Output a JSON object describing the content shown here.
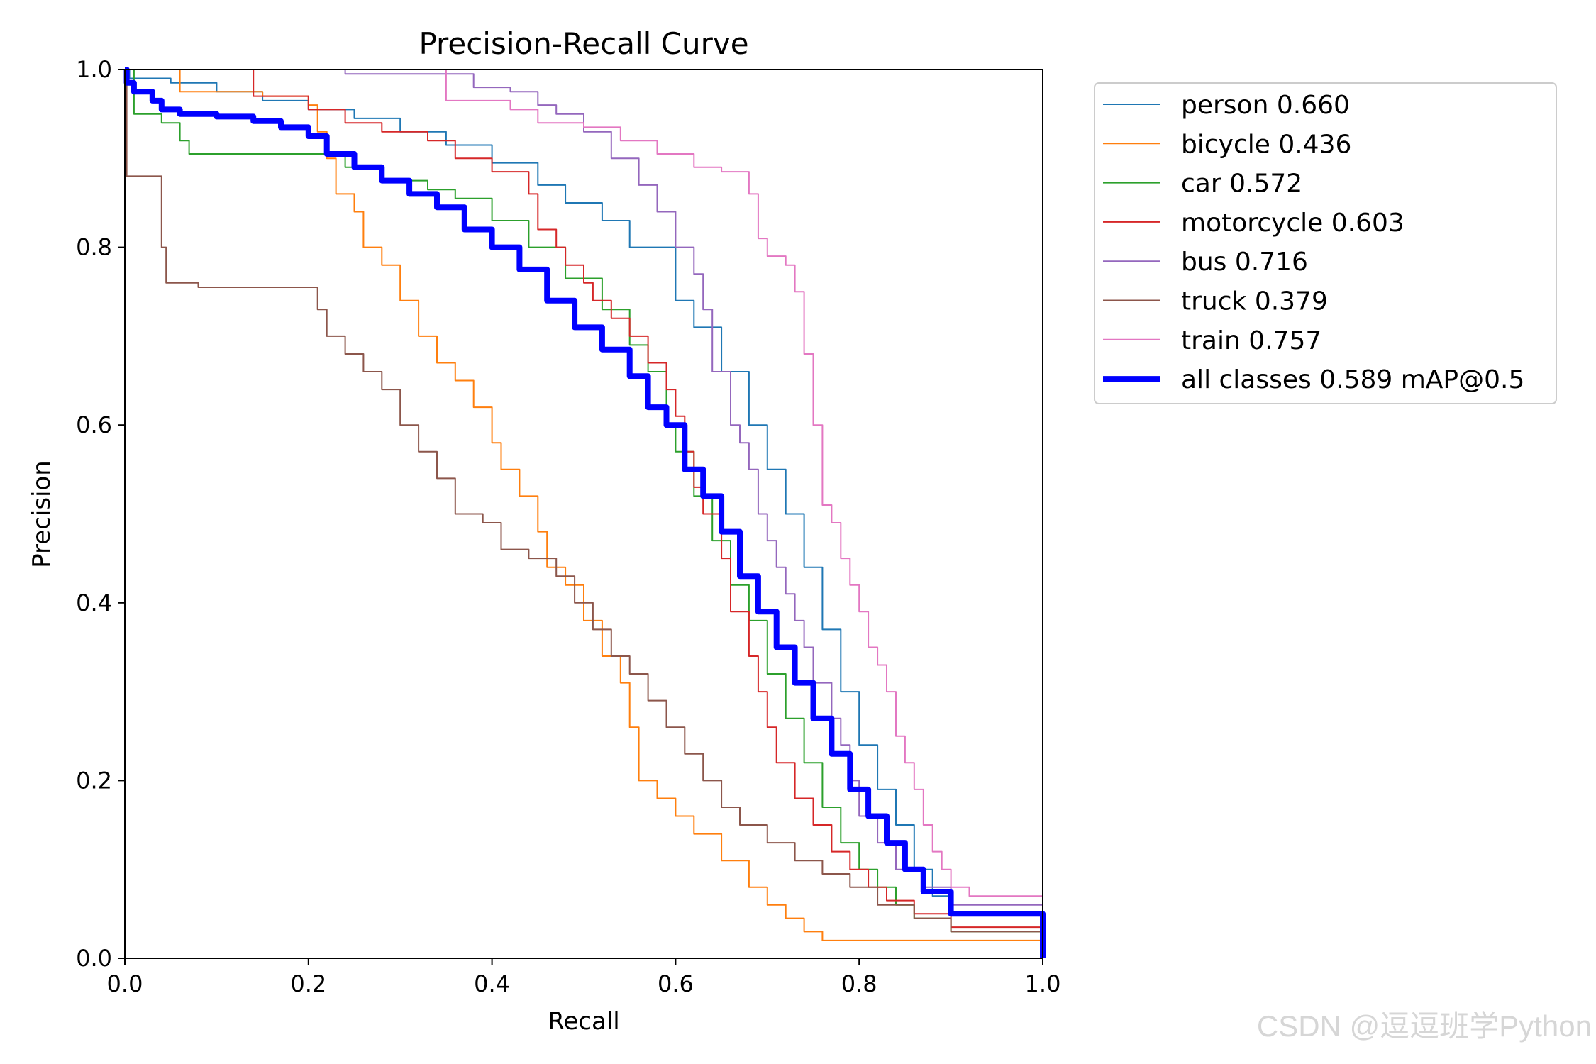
{
  "chart_data": {
    "type": "line",
    "title": "Precision-Recall Curve",
    "xlabel": "Recall",
    "ylabel": "Precision",
    "xlim": [
      0,
      1
    ],
    "ylim": [
      0,
      1
    ],
    "xticks": [
      "0.0",
      "0.2",
      "0.4",
      "0.6",
      "0.8",
      "1.0"
    ],
    "yticks": [
      "0.0",
      "0.2",
      "0.4",
      "0.6",
      "0.8",
      "1.0"
    ],
    "legend_position": "outside-top-right",
    "series": [
      {
        "name": "person",
        "label": "person 0.660",
        "color": "#1f77b4",
        "bold": false,
        "points": [
          [
            0,
            1.0
          ],
          [
            0.005,
            0.99
          ],
          [
            0.05,
            0.985
          ],
          [
            0.1,
            0.975
          ],
          [
            0.15,
            0.965
          ],
          [
            0.2,
            0.955
          ],
          [
            0.25,
            0.945
          ],
          [
            0.3,
            0.93
          ],
          [
            0.35,
            0.915
          ],
          [
            0.4,
            0.895
          ],
          [
            0.45,
            0.87
          ],
          [
            0.48,
            0.85
          ],
          [
            0.52,
            0.83
          ],
          [
            0.55,
            0.8
          ],
          [
            0.6,
            0.74
          ],
          [
            0.62,
            0.71
          ],
          [
            0.65,
            0.66
          ],
          [
            0.68,
            0.6
          ],
          [
            0.7,
            0.55
          ],
          [
            0.72,
            0.5
          ],
          [
            0.74,
            0.44
          ],
          [
            0.76,
            0.37
          ],
          [
            0.78,
            0.3
          ],
          [
            0.8,
            0.24
          ],
          [
            0.82,
            0.19
          ],
          [
            0.84,
            0.15
          ],
          [
            0.86,
            0.1
          ],
          [
            0.88,
            0.07
          ],
          [
            0.9,
            0.05
          ],
          [
            1.0,
            0.0
          ]
        ]
      },
      {
        "name": "bicycle",
        "label": "bicycle 0.436",
        "color": "#ff7f0e",
        "bold": false,
        "points": [
          [
            0,
            1.0
          ],
          [
            0.05,
            1.0
          ],
          [
            0.06,
            0.975
          ],
          [
            0.1,
            0.975
          ],
          [
            0.15,
            0.97
          ],
          [
            0.2,
            0.96
          ],
          [
            0.21,
            0.93
          ],
          [
            0.22,
            0.9
          ],
          [
            0.23,
            0.86
          ],
          [
            0.25,
            0.84
          ],
          [
            0.26,
            0.8
          ],
          [
            0.28,
            0.78
          ],
          [
            0.3,
            0.74
          ],
          [
            0.32,
            0.7
          ],
          [
            0.34,
            0.67
          ],
          [
            0.36,
            0.65
          ],
          [
            0.38,
            0.62
          ],
          [
            0.4,
            0.58
          ],
          [
            0.41,
            0.55
          ],
          [
            0.43,
            0.52
          ],
          [
            0.45,
            0.48
          ],
          [
            0.46,
            0.44
          ],
          [
            0.48,
            0.42
          ],
          [
            0.5,
            0.38
          ],
          [
            0.52,
            0.34
          ],
          [
            0.54,
            0.31
          ],
          [
            0.55,
            0.26
          ],
          [
            0.56,
            0.2
          ],
          [
            0.58,
            0.18
          ],
          [
            0.6,
            0.16
          ],
          [
            0.62,
            0.14
          ],
          [
            0.65,
            0.11
          ],
          [
            0.68,
            0.08
          ],
          [
            0.7,
            0.06
          ],
          [
            0.72,
            0.045
          ],
          [
            0.74,
            0.03
          ],
          [
            0.76,
            0.02
          ],
          [
            1.0,
            0.0
          ]
        ]
      },
      {
        "name": "car",
        "label": "car 0.572",
        "color": "#2ca02c",
        "bold": false,
        "points": [
          [
            0,
            1.0
          ],
          [
            0.01,
            0.95
          ],
          [
            0.04,
            0.94
          ],
          [
            0.06,
            0.92
          ],
          [
            0.07,
            0.905
          ],
          [
            0.12,
            0.905
          ],
          [
            0.2,
            0.905
          ],
          [
            0.24,
            0.89
          ],
          [
            0.28,
            0.875
          ],
          [
            0.33,
            0.865
          ],
          [
            0.36,
            0.855
          ],
          [
            0.4,
            0.83
          ],
          [
            0.44,
            0.8
          ],
          [
            0.48,
            0.765
          ],
          [
            0.52,
            0.73
          ],
          [
            0.55,
            0.69
          ],
          [
            0.57,
            0.66
          ],
          [
            0.59,
            0.6
          ],
          [
            0.6,
            0.57
          ],
          [
            0.62,
            0.52
          ],
          [
            0.64,
            0.47
          ],
          [
            0.66,
            0.42
          ],
          [
            0.68,
            0.38
          ],
          [
            0.7,
            0.32
          ],
          [
            0.72,
            0.27
          ],
          [
            0.74,
            0.22
          ],
          [
            0.76,
            0.17
          ],
          [
            0.78,
            0.13
          ],
          [
            0.8,
            0.1
          ],
          [
            0.82,
            0.08
          ],
          [
            0.84,
            0.06
          ],
          [
            0.86,
            0.045
          ],
          [
            0.9,
            0.03
          ],
          [
            1.0,
            0.0
          ]
        ]
      },
      {
        "name": "motorcycle",
        "label": "motorcycle 0.603",
        "color": "#d62728",
        "bold": false,
        "points": [
          [
            0.13,
            1.0
          ],
          [
            0.14,
            0.97
          ],
          [
            0.2,
            0.955
          ],
          [
            0.24,
            0.94
          ],
          [
            0.28,
            0.93
          ],
          [
            0.33,
            0.92
          ],
          [
            0.36,
            0.9
          ],
          [
            0.4,
            0.885
          ],
          [
            0.44,
            0.86
          ],
          [
            0.45,
            0.82
          ],
          [
            0.47,
            0.8
          ],
          [
            0.48,
            0.78
          ],
          [
            0.5,
            0.76
          ],
          [
            0.51,
            0.74
          ],
          [
            0.53,
            0.72
          ],
          [
            0.55,
            0.7
          ],
          [
            0.57,
            0.67
          ],
          [
            0.59,
            0.64
          ],
          [
            0.6,
            0.61
          ],
          [
            0.61,
            0.57
          ],
          [
            0.62,
            0.53
          ],
          [
            0.63,
            0.5
          ],
          [
            0.65,
            0.45
          ],
          [
            0.66,
            0.39
          ],
          [
            0.68,
            0.34
          ],
          [
            0.69,
            0.3
          ],
          [
            0.7,
            0.26
          ],
          [
            0.71,
            0.22
          ],
          [
            0.73,
            0.18
          ],
          [
            0.75,
            0.15
          ],
          [
            0.77,
            0.12
          ],
          [
            0.79,
            0.1
          ],
          [
            0.81,
            0.08
          ],
          [
            0.83,
            0.065
          ],
          [
            0.86,
            0.05
          ],
          [
            0.9,
            0.035
          ],
          [
            1.0,
            0.0
          ]
        ]
      },
      {
        "name": "bus",
        "label": "bus 0.716",
        "color": "#9467bd",
        "bold": false,
        "points": [
          [
            0.24,
            1.0
          ],
          [
            0.24,
            0.995
          ],
          [
            0.34,
            0.995
          ],
          [
            0.38,
            0.98
          ],
          [
            0.42,
            0.975
          ],
          [
            0.45,
            0.96
          ],
          [
            0.47,
            0.95
          ],
          [
            0.5,
            0.93
          ],
          [
            0.53,
            0.9
          ],
          [
            0.56,
            0.87
          ],
          [
            0.58,
            0.84
          ],
          [
            0.6,
            0.8
          ],
          [
            0.62,
            0.77
          ],
          [
            0.63,
            0.73
          ],
          [
            0.64,
            0.66
          ],
          [
            0.66,
            0.6
          ],
          [
            0.67,
            0.58
          ],
          [
            0.68,
            0.55
          ],
          [
            0.69,
            0.5
          ],
          [
            0.7,
            0.47
          ],
          [
            0.71,
            0.44
          ],
          [
            0.72,
            0.41
          ],
          [
            0.73,
            0.38
          ],
          [
            0.74,
            0.35
          ],
          [
            0.75,
            0.31
          ],
          [
            0.77,
            0.27
          ],
          [
            0.78,
            0.24
          ],
          [
            0.79,
            0.2
          ],
          [
            0.8,
            0.16
          ],
          [
            0.82,
            0.13
          ],
          [
            0.84,
            0.1
          ],
          [
            0.87,
            0.08
          ],
          [
            0.9,
            0.06
          ],
          [
            1.0,
            0.0
          ]
        ]
      },
      {
        "name": "truck",
        "label": "truck 0.379",
        "color": "#8c564b",
        "bold": false,
        "points": [
          [
            0,
            1.0
          ],
          [
            0.002,
            0.88
          ],
          [
            0.035,
            0.88
          ],
          [
            0.04,
            0.8
          ],
          [
            0.045,
            0.76
          ],
          [
            0.08,
            0.755
          ],
          [
            0.15,
            0.755
          ],
          [
            0.2,
            0.755
          ],
          [
            0.21,
            0.73
          ],
          [
            0.22,
            0.7
          ],
          [
            0.24,
            0.68
          ],
          [
            0.26,
            0.66
          ],
          [
            0.28,
            0.64
          ],
          [
            0.3,
            0.6
          ],
          [
            0.32,
            0.57
          ],
          [
            0.34,
            0.54
          ],
          [
            0.36,
            0.5
          ],
          [
            0.39,
            0.49
          ],
          [
            0.41,
            0.46
          ],
          [
            0.44,
            0.45
          ],
          [
            0.47,
            0.43
          ],
          [
            0.49,
            0.4
          ],
          [
            0.51,
            0.37
          ],
          [
            0.53,
            0.34
          ],
          [
            0.55,
            0.32
          ],
          [
            0.57,
            0.29
          ],
          [
            0.59,
            0.26
          ],
          [
            0.61,
            0.23
          ],
          [
            0.63,
            0.2
          ],
          [
            0.65,
            0.17
          ],
          [
            0.67,
            0.15
          ],
          [
            0.7,
            0.13
          ],
          [
            0.73,
            0.11
          ],
          [
            0.76,
            0.095
          ],
          [
            0.79,
            0.08
          ],
          [
            0.82,
            0.06
          ],
          [
            0.86,
            0.045
          ],
          [
            0.9,
            0.03
          ],
          [
            1.0,
            0.0
          ]
        ]
      },
      {
        "name": "train",
        "label": "train 0.757",
        "color": "#e377c2",
        "bold": false,
        "points": [
          [
            0.35,
            1.0
          ],
          [
            0.35,
            0.965
          ],
          [
            0.42,
            0.955
          ],
          [
            0.45,
            0.94
          ],
          [
            0.5,
            0.935
          ],
          [
            0.54,
            0.92
          ],
          [
            0.58,
            0.905
          ],
          [
            0.62,
            0.89
          ],
          [
            0.65,
            0.885
          ],
          [
            0.68,
            0.86
          ],
          [
            0.69,
            0.81
          ],
          [
            0.7,
            0.79
          ],
          [
            0.72,
            0.78
          ],
          [
            0.73,
            0.75
          ],
          [
            0.74,
            0.68
          ],
          [
            0.75,
            0.6
          ],
          [
            0.76,
            0.51
          ],
          [
            0.77,
            0.49
          ],
          [
            0.78,
            0.45
          ],
          [
            0.79,
            0.42
          ],
          [
            0.8,
            0.39
          ],
          [
            0.81,
            0.35
          ],
          [
            0.82,
            0.33
          ],
          [
            0.83,
            0.3
          ],
          [
            0.84,
            0.25
          ],
          [
            0.85,
            0.22
          ],
          [
            0.86,
            0.19
          ],
          [
            0.87,
            0.15
          ],
          [
            0.88,
            0.12
          ],
          [
            0.89,
            0.1
          ],
          [
            0.9,
            0.08
          ],
          [
            0.92,
            0.07
          ],
          [
            1.0,
            0.0
          ]
        ]
      },
      {
        "name": "all classes",
        "label": "all classes 0.589 mAP@0.5",
        "color": "#0000ff",
        "bold": true,
        "points": [
          [
            0,
            1.0
          ],
          [
            0.002,
            0.985
          ],
          [
            0.01,
            0.975
          ],
          [
            0.03,
            0.965
          ],
          [
            0.04,
            0.955
          ],
          [
            0.06,
            0.95
          ],
          [
            0.1,
            0.947
          ],
          [
            0.14,
            0.942
          ],
          [
            0.17,
            0.935
          ],
          [
            0.2,
            0.925
          ],
          [
            0.22,
            0.905
          ],
          [
            0.25,
            0.89
          ],
          [
            0.28,
            0.875
          ],
          [
            0.31,
            0.86
          ],
          [
            0.34,
            0.845
          ],
          [
            0.37,
            0.82
          ],
          [
            0.4,
            0.8
          ],
          [
            0.43,
            0.775
          ],
          [
            0.46,
            0.74
          ],
          [
            0.49,
            0.71
          ],
          [
            0.52,
            0.685
          ],
          [
            0.55,
            0.655
          ],
          [
            0.57,
            0.62
          ],
          [
            0.59,
            0.6
          ],
          [
            0.61,
            0.55
          ],
          [
            0.63,
            0.52
          ],
          [
            0.65,
            0.48
          ],
          [
            0.67,
            0.43
          ],
          [
            0.69,
            0.39
          ],
          [
            0.71,
            0.35
          ],
          [
            0.73,
            0.31
          ],
          [
            0.75,
            0.27
          ],
          [
            0.77,
            0.23
          ],
          [
            0.79,
            0.19
          ],
          [
            0.81,
            0.16
          ],
          [
            0.83,
            0.13
          ],
          [
            0.85,
            0.1
          ],
          [
            0.87,
            0.075
          ],
          [
            0.9,
            0.05
          ],
          [
            1.0,
            0.0
          ]
        ]
      }
    ]
  },
  "watermark": "CSDN @逗逗班学Python"
}
